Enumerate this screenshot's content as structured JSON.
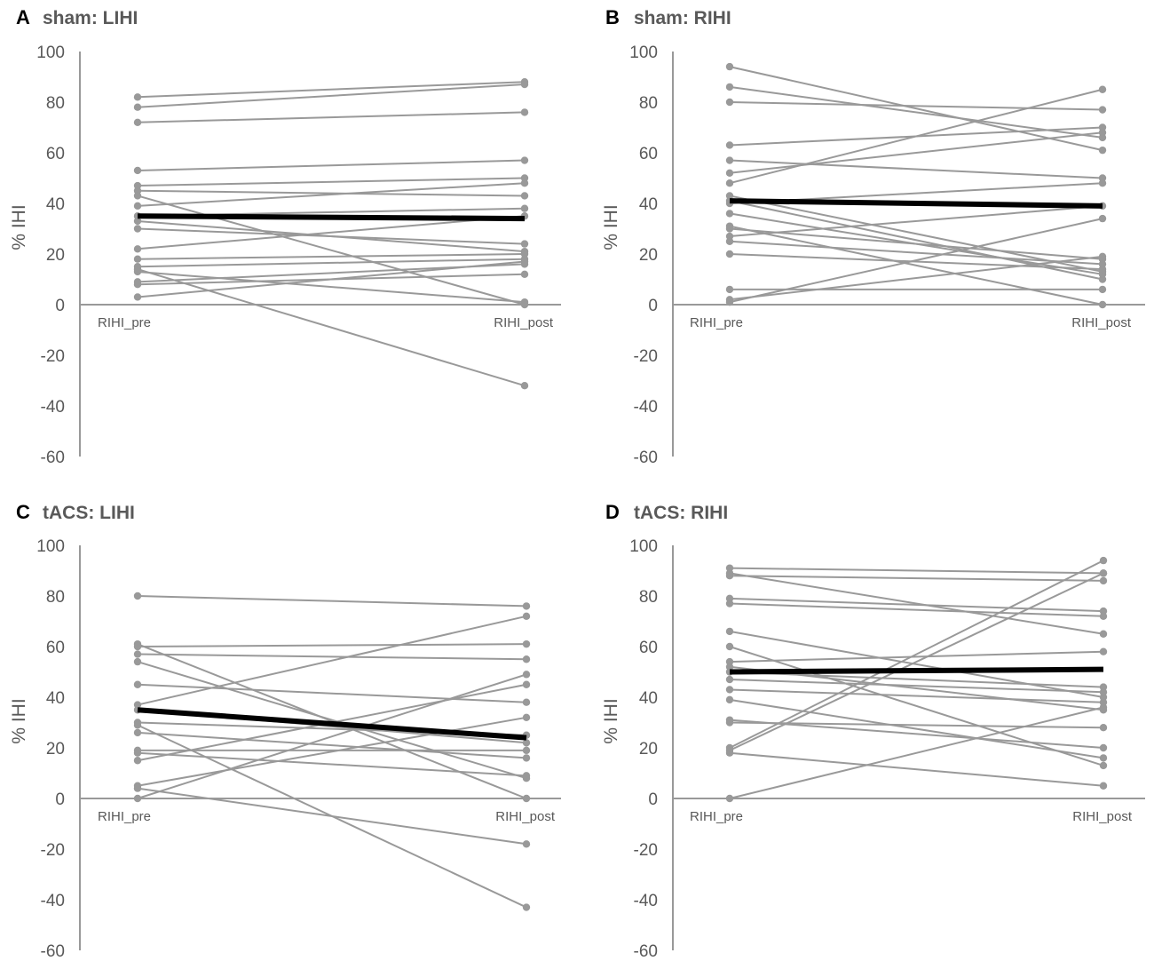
{
  "colors": {
    "subject_line": "#999999",
    "mean_line": "#000000",
    "axis": "#999999",
    "text": "#595959"
  },
  "chart_data": [
    {
      "type": "line",
      "letter": "A",
      "title": "sham: LIHI",
      "ylabel": "% IHI",
      "categories": [
        "RIHI_pre",
        "RIHI_post"
      ],
      "ylim": [
        -60,
        100
      ],
      "yticks": [
        "100",
        "80",
        "60",
        "40",
        "20",
        "0",
        "-20",
        "-40",
        "-60"
      ],
      "series": [
        {
          "name": "s1",
          "values": [
            82,
            88
          ]
        },
        {
          "name": "s2",
          "values": [
            78,
            87
          ]
        },
        {
          "name": "s3",
          "values": [
            72,
            76
          ]
        },
        {
          "name": "s4",
          "values": [
            53,
            57
          ]
        },
        {
          "name": "s5",
          "values": [
            47,
            50
          ]
        },
        {
          "name": "s6",
          "values": [
            45,
            43
          ]
        },
        {
          "name": "s7",
          "values": [
            43,
            0
          ]
        },
        {
          "name": "s8",
          "values": [
            39,
            48
          ]
        },
        {
          "name": "s9",
          "values": [
            35,
            38
          ]
        },
        {
          "name": "s10",
          "values": [
            33,
            21
          ]
        },
        {
          "name": "s11",
          "values": [
            30,
            24
          ]
        },
        {
          "name": "s12",
          "values": [
            22,
            35
          ]
        },
        {
          "name": "s13",
          "values": [
            18,
            20
          ]
        },
        {
          "name": "s14",
          "values": [
            15,
            18
          ]
        },
        {
          "name": "s15",
          "values": [
            14,
            -32
          ]
        },
        {
          "name": "s16",
          "values": [
            13,
            1
          ]
        },
        {
          "name": "s17",
          "values": [
            9,
            16
          ]
        },
        {
          "name": "s18",
          "values": [
            8,
            12
          ]
        },
        {
          "name": "s19",
          "values": [
            3,
            17
          ]
        }
      ],
      "mean": {
        "name": "mean",
        "values": [
          35,
          34
        ]
      }
    },
    {
      "type": "line",
      "letter": "B",
      "title": "sham: RIHI",
      "ylabel": "% IHI",
      "categories": [
        "RIHI_pre",
        "RIHI_post"
      ],
      "ylim": [
        -60,
        100
      ],
      "yticks": [
        "100",
        "80",
        "60",
        "40",
        "20",
        "0",
        "-20",
        "-40",
        "-60"
      ],
      "series": [
        {
          "name": "s1",
          "values": [
            94,
            61
          ]
        },
        {
          "name": "s2",
          "values": [
            86,
            66
          ]
        },
        {
          "name": "s3",
          "values": [
            80,
            77
          ]
        },
        {
          "name": "s4",
          "values": [
            63,
            70
          ]
        },
        {
          "name": "s5",
          "values": [
            57,
            50
          ]
        },
        {
          "name": "s6",
          "values": [
            52,
            68
          ]
        },
        {
          "name": "s7",
          "values": [
            48,
            85
          ]
        },
        {
          "name": "s8",
          "values": [
            43,
            13
          ]
        },
        {
          "name": "s9",
          "values": [
            41,
            10
          ]
        },
        {
          "name": "s10",
          "values": [
            40,
            48
          ]
        },
        {
          "name": "s11",
          "values": [
            36,
            12
          ]
        },
        {
          "name": "s12",
          "values": [
            31,
            0
          ]
        },
        {
          "name": "s13",
          "values": [
            30,
            18
          ]
        },
        {
          "name": "s14",
          "values": [
            27,
            39
          ]
        },
        {
          "name": "s15",
          "values": [
            25,
            16
          ]
        },
        {
          "name": "s16",
          "values": [
            20,
            14
          ]
        },
        {
          "name": "s17",
          "values": [
            6,
            6
          ]
        },
        {
          "name": "s18",
          "values": [
            2,
            19
          ]
        },
        {
          "name": "s19",
          "values": [
            1,
            34
          ]
        }
      ],
      "mean": {
        "name": "mean",
        "values": [
          41,
          39
        ]
      }
    },
    {
      "type": "line",
      "letter": "C",
      "title": "tACS: LIHI",
      "ylabel": "% IHI",
      "categories": [
        "RIHI_pre",
        "RIHI_post"
      ],
      "ylim": [
        -60,
        100
      ],
      "yticks": [
        "100",
        "80",
        "60",
        "40",
        "20",
        "0",
        "-20",
        "-40",
        "-60"
      ],
      "series": [
        {
          "name": "s1",
          "values": [
            80,
            76
          ]
        },
        {
          "name": "s2",
          "values": [
            61,
            0
          ]
        },
        {
          "name": "s3",
          "values": [
            60,
            61
          ]
        },
        {
          "name": "s4",
          "values": [
            57,
            55
          ]
        },
        {
          "name": "s5",
          "values": [
            54,
            8
          ]
        },
        {
          "name": "s6",
          "values": [
            45,
            38
          ]
        },
        {
          "name": "s7",
          "values": [
            37,
            72
          ]
        },
        {
          "name": "s8",
          "values": [
            35,
            22
          ]
        },
        {
          "name": "s9",
          "values": [
            30,
            25
          ]
        },
        {
          "name": "s10",
          "values": [
            29,
            -43
          ]
        },
        {
          "name": "s11",
          "values": [
            26,
            16
          ]
        },
        {
          "name": "s12",
          "values": [
            19,
            19
          ]
        },
        {
          "name": "s13",
          "values": [
            18,
            9
          ]
        },
        {
          "name": "s14",
          "values": [
            15,
            45
          ]
        },
        {
          "name": "s15",
          "values": [
            5,
            32
          ]
        },
        {
          "name": "s16",
          "values": [
            4,
            -18
          ]
        },
        {
          "name": "s17",
          "values": [
            0,
            49
          ]
        }
      ],
      "mean": {
        "name": "mean",
        "values": [
          35,
          24
        ]
      }
    },
    {
      "type": "line",
      "letter": "D",
      "title": "tACS: RIHI",
      "ylabel": "% IHI",
      "categories": [
        "RIHI_pre",
        "RIHI_post"
      ],
      "ylim": [
        -60,
        100
      ],
      "yticks": [
        "100",
        "80",
        "60",
        "40",
        "20",
        "0",
        "-20",
        "-40",
        "-60"
      ],
      "series": [
        {
          "name": "s1",
          "values": [
            91,
            89
          ]
        },
        {
          "name": "s2",
          "values": [
            89,
            65
          ]
        },
        {
          "name": "s3",
          "values": [
            88,
            86
          ]
        },
        {
          "name": "s4",
          "values": [
            79,
            74
          ]
        },
        {
          "name": "s5",
          "values": [
            77,
            72
          ]
        },
        {
          "name": "s6",
          "values": [
            66,
            40
          ]
        },
        {
          "name": "s7",
          "values": [
            60,
            13
          ]
        },
        {
          "name": "s8",
          "values": [
            54,
            58
          ]
        },
        {
          "name": "s9",
          "values": [
            52,
            35
          ]
        },
        {
          "name": "s10",
          "values": [
            50,
            44
          ]
        },
        {
          "name": "s11",
          "values": [
            47,
            42
          ]
        },
        {
          "name": "s12",
          "values": [
            43,
            38
          ]
        },
        {
          "name": "s13",
          "values": [
            39,
            16
          ]
        },
        {
          "name": "s14",
          "values": [
            31,
            20
          ]
        },
        {
          "name": "s15",
          "values": [
            30,
            28
          ]
        },
        {
          "name": "s16",
          "values": [
            20,
            94
          ]
        },
        {
          "name": "s17",
          "values": [
            19,
            89
          ]
        },
        {
          "name": "s18",
          "values": [
            18,
            5
          ]
        },
        {
          "name": "s19",
          "values": [
            0,
            36
          ]
        }
      ],
      "mean": {
        "name": "mean",
        "values": [
          50,
          51
        ]
      }
    }
  ]
}
